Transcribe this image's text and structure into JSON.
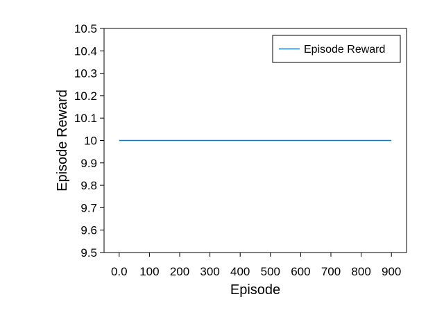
{
  "chart_data": {
    "type": "line",
    "xlabel": "Episode",
    "ylabel": "Episode Reward",
    "xlim": [
      -50,
      950
    ],
    "ylim": [
      9.5,
      10.5
    ],
    "x_ticks": [
      0,
      100,
      200,
      300,
      400,
      500,
      600,
      700,
      800,
      900
    ],
    "x_tick_labels": [
      "0.0",
      "100",
      "200",
      "300",
      "400",
      "500",
      "600",
      "700",
      "800",
      "900"
    ],
    "y_ticks": [
      9.5,
      9.6,
      9.7,
      9.8,
      9.9,
      10.0,
      10.1,
      10.2,
      10.3,
      10.4,
      10.5
    ],
    "y_tick_labels": [
      "9.5",
      "9.6",
      "9.7",
      "9.8",
      "9.9",
      "10",
      "10.1",
      "10.2",
      "10.3",
      "10.4",
      "10.5"
    ],
    "grid": false,
    "legend_position": "top-right",
    "series": [
      {
        "name": "Episode Reward",
        "color": "#1f77b4",
        "x": [
          0,
          100,
          200,
          300,
          400,
          500,
          600,
          700,
          800,
          900
        ],
        "y": [
          10,
          10,
          10,
          10,
          10,
          10,
          10,
          10,
          10,
          10
        ]
      }
    ]
  }
}
